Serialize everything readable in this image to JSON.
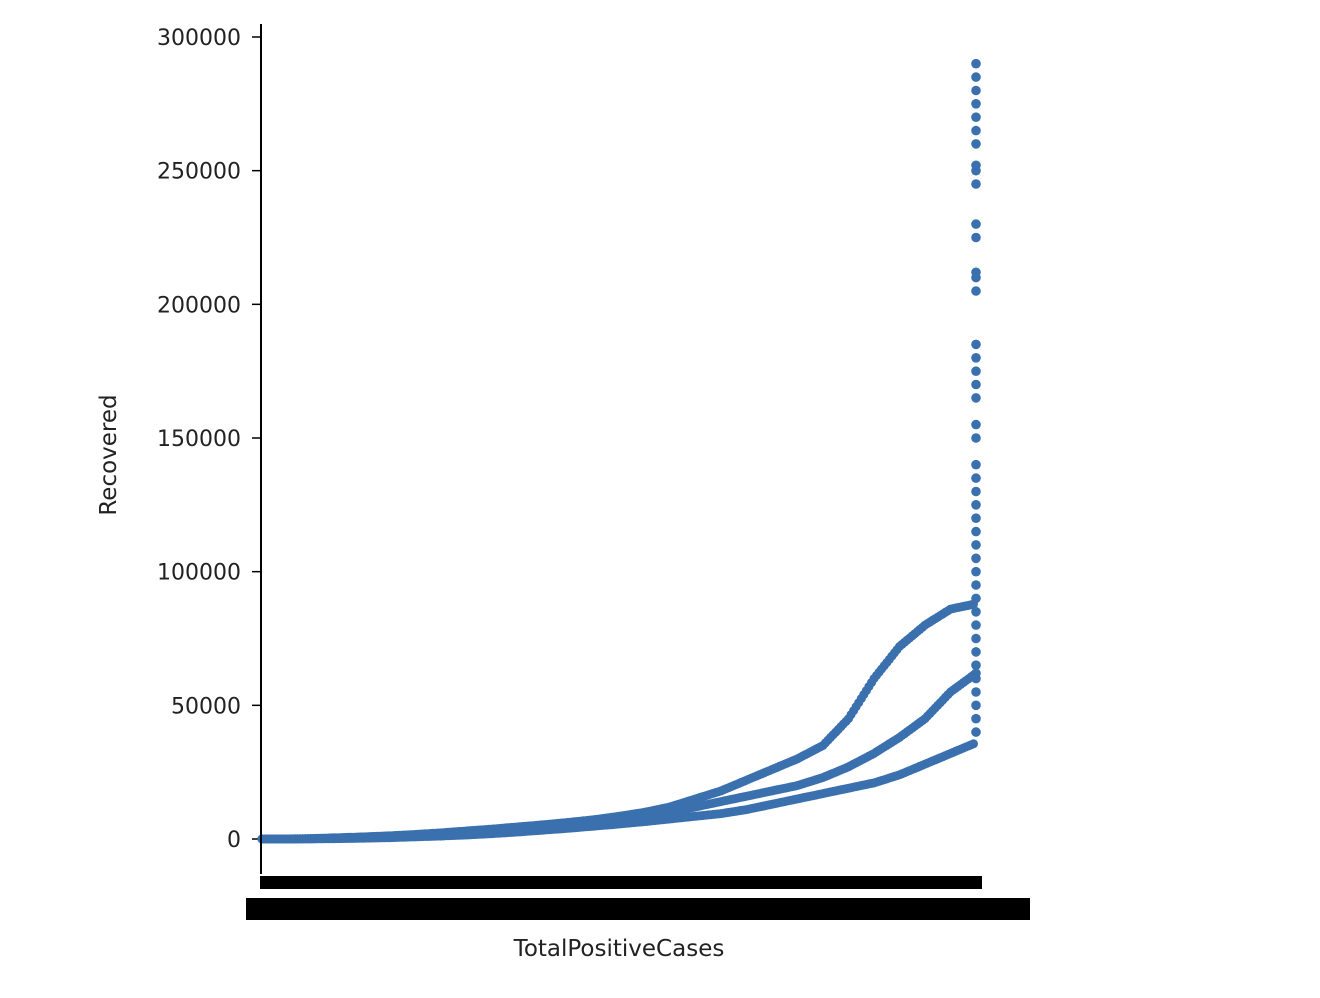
{
  "chart_data": {
    "type": "scatter",
    "title": "",
    "xlabel": "TotalPositiveCases",
    "ylabel": "Recovered",
    "ylim": [
      -15000,
      300000
    ],
    "y_ticks": [
      "0",
      "50000",
      "100000",
      "150000",
      "200000",
      "250000",
      "300000"
    ],
    "y_tick_values": [
      0,
      50000,
      100000,
      150000,
      200000,
      250000,
      300000
    ],
    "x_tick_labels": "categorical, overlapping (illegible)",
    "grid": false,
    "legend": "none",
    "marker_color": "#3a70ae",
    "axis_color": "#000000",
    "series_approx": [
      {
        "values": [
          0,
          0,
          200,
          500,
          800,
          1200,
          1700,
          2300,
          3000,
          3700,
          4500,
          5300,
          6200,
          7200,
          8500,
          10000,
          12000,
          15000,
          18000,
          22000,
          26000,
          30000,
          35000,
          45000,
          60000,
          72000,
          80000,
          86000,
          88000
        ]
      },
      {
        "values": [
          0,
          0,
          100,
          300,
          500,
          800,
          1200,
          1700,
          2200,
          2800,
          3500,
          4300,
          5200,
          6000,
          7000,
          8500,
          10000,
          12000,
          14000,
          16000,
          18000,
          20000,
          23000,
          27000,
          32000,
          38000,
          45000,
          55000,
          62000
        ]
      },
      {
        "values": [
          0,
          0,
          50,
          150,
          300,
          500,
          800,
          1100,
          1500,
          2000,
          2600,
          3300,
          4000,
          4800,
          5600,
          6500,
          7500,
          8500,
          9500,
          11000,
          13000,
          15000,
          17000,
          19000,
          21000,
          24000,
          28000,
          32000,
          36000
        ]
      }
    ],
    "vertical_tail_values": [
      40000,
      45000,
      50000,
      55000,
      60000,
      62000,
      65000,
      70000,
      75000,
      80000,
      85000,
      90000,
      95000,
      100000,
      105000,
      110000,
      115000,
      120000,
      125000,
      130000,
      135000,
      140000,
      150000,
      155000,
      165000,
      170000,
      175000,
      180000,
      185000,
      205000,
      210000,
      212000,
      225000,
      230000,
      245000,
      250000,
      252000,
      260000,
      265000,
      270000,
      275000,
      280000,
      285000,
      290000
    ]
  }
}
